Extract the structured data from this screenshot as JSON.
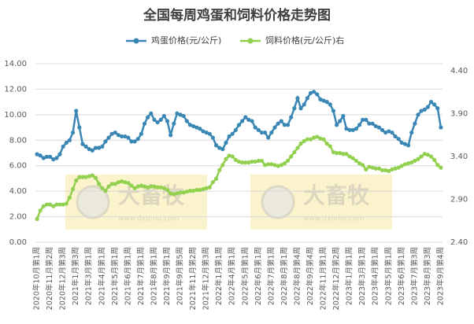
{
  "chart_data": {
    "type": "line",
    "title": "全国每周鸡蛋和饲料价格走势图",
    "categories": [
      "2020年10月第1周",
      null,
      null,
      null,
      "2020年11月第2周",
      null,
      null,
      null,
      "2020年12月第3周",
      null,
      null,
      null,
      "2021年1月第3周",
      null,
      null,
      null,
      "2021年3月第1周",
      null,
      null,
      null,
      "2021年4月第1周",
      null,
      null,
      null,
      "2021年5月第1周",
      null,
      null,
      null,
      "2021年6月第1周",
      null,
      null,
      null,
      "2021年7月第1周",
      null,
      null,
      null,
      "2021年8月第1周",
      null,
      null,
      null,
      "2021年9月第1周",
      null,
      null,
      null,
      "2021年9月第5周",
      null,
      null,
      null,
      "2021年11月第2周",
      null,
      null,
      null,
      "2021年12月第3周",
      null,
      null,
      null,
      "2022年1月第1周",
      null,
      null,
      null,
      "2022年4月第1周",
      null,
      null,
      null,
      "2022年5月第1周",
      null,
      null,
      null,
      "2022年6月第1周",
      null,
      null,
      null,
      "2022年7月第1周",
      null,
      null,
      null,
      "2022年8月第1周",
      null,
      null,
      null,
      "2022年8月第4周",
      null,
      null,
      null,
      "2022年9月第4周",
      null,
      null,
      null,
      "2022年11月第1周",
      null,
      null,
      null,
      "2022年12月第2周",
      null,
      null,
      null,
      "2023年1月第1周",
      null,
      null,
      null,
      "2023年3月第1周",
      null,
      null,
      null,
      "2023年4月第1周",
      null,
      null,
      null,
      "2023年5月第1周",
      null,
      null,
      null,
      "2023年6月第1周",
      null,
      null,
      null,
      "2023年7月第3周",
      null,
      null,
      null,
      "2023年8月第3周",
      null,
      null,
      null,
      "2023年9月第4周"
    ],
    "series": [
      {
        "name": "鸡蛋价格(元/公斤)",
        "color": "#3a87b5",
        "values": [
          6.9,
          6.8,
          6.6,
          6.7,
          6.7,
          6.5,
          6.6,
          6.9,
          7.5,
          7.8,
          8.0,
          8.6,
          10.3,
          9.0,
          7.7,
          7.5,
          7.3,
          7.2,
          7.4,
          7.4,
          7.5,
          7.9,
          8.2,
          8.5,
          8.6,
          8.4,
          8.3,
          8.3,
          8.2,
          7.9,
          7.9,
          8.1,
          8.5,
          9.3,
          9.8,
          10.1,
          9.6,
          9.4,
          9.6,
          9.9,
          9.5,
          8.4,
          9.3,
          10.1,
          10.0,
          9.9,
          9.5,
          9.2,
          9.1,
          9.0,
          8.9,
          8.7,
          8.6,
          8.5,
          8.2,
          7.6,
          7.4,
          7.3,
          7.8,
          8.3,
          8.5,
          8.8,
          9.2,
          9.5,
          9.8,
          9.6,
          9.5,
          9.0,
          8.8,
          8.6,
          8.6,
          8.2,
          8.6,
          9.0,
          9.3,
          9.5,
          9.2,
          9.2,
          9.8,
          10.5,
          11.3,
          10.5,
          10.8,
          11.3,
          11.7,
          11.8,
          11.6,
          11.2,
          11.1,
          11.0,
          10.8,
          10.3,
          9.2,
          9.5,
          9.9,
          8.9,
          8.8,
          8.8,
          8.9,
          9.2,
          9.6,
          9.6,
          9.3,
          9.3,
          9.1,
          9.0,
          8.8,
          8.6,
          8.7,
          8.6,
          8.3,
          8.1,
          7.8,
          7.7,
          7.6,
          8.6,
          9.3,
          10.0,
          10.3,
          10.4,
          10.6,
          11.0,
          10.8,
          10.5,
          9.0
        ]
      },
      {
        "name": "饲料价格(元/公斤)右",
        "color": "#92d050",
        "axis": "y2",
        "values": [
          2.67,
          2.77,
          2.82,
          2.84,
          2.84,
          2.82,
          2.84,
          2.84,
          2.84,
          2.85,
          2.92,
          3.02,
          3.12,
          3.16,
          3.16,
          3.16,
          3.17,
          3.18,
          3.15,
          3.08,
          3.03,
          3.0,
          3.05,
          3.08,
          3.08,
          3.1,
          3.11,
          3.1,
          3.09,
          3.06,
          3.03,
          3.05,
          3.06,
          3.05,
          3.04,
          3.05,
          3.05,
          3.04,
          3.04,
          3.03,
          3.01,
          2.97,
          2.96,
          2.97,
          2.98,
          2.98,
          2.99,
          3.0,
          3.0,
          3.01,
          3.01,
          3.02,
          3.03,
          3.04,
          3.1,
          3.14,
          3.24,
          3.3,
          3.37,
          3.41,
          3.4,
          3.36,
          3.34,
          3.33,
          3.33,
          3.33,
          3.34,
          3.34,
          3.35,
          3.35,
          3.3,
          3.31,
          3.31,
          3.3,
          3.29,
          3.3,
          3.32,
          3.35,
          3.4,
          3.45,
          3.5,
          3.55,
          3.58,
          3.6,
          3.6,
          3.62,
          3.63,
          3.61,
          3.6,
          3.55,
          3.52,
          3.45,
          3.44,
          3.44,
          3.43,
          3.43,
          3.4,
          3.38,
          3.35,
          3.32,
          3.3,
          3.25,
          3.28,
          3.27,
          3.26,
          3.26,
          3.24,
          3.24,
          3.23,
          3.25,
          3.26,
          3.27,
          3.29,
          3.31,
          3.32,
          3.33,
          3.35,
          3.37,
          3.4,
          3.43,
          3.42,
          3.4,
          3.36,
          3.3,
          3.27
        ]
      }
    ],
    "ylim": [
      0,
      14
    ],
    "yticks": [
      {
        "value": 0,
        "label": "0.00"
      },
      {
        "value": 2,
        "label": "2.00"
      },
      {
        "value": 4,
        "label": "4.00"
      },
      {
        "value": 6,
        "label": "6.00"
      },
      {
        "value": 8,
        "label": "8.00"
      },
      {
        "value": 10,
        "label": "10.00"
      },
      {
        "value": 12,
        "label": "12.00"
      },
      {
        "value": 14,
        "label": "14.00"
      }
    ],
    "y2lim": [
      2.4,
      4.4
    ],
    "y2ticks": [
      {
        "value": 2.4,
        "label": "2.40"
      },
      {
        "value": 2.9,
        "label": "2.90"
      },
      {
        "value": 3.4,
        "label": "3.40"
      },
      {
        "value": 3.9,
        "label": "3.90"
      },
      {
        "value": 4.4,
        "label": "4.40"
      }
    ],
    "grid": true,
    "legend": "top",
    "watermark": {
      "text": "大畜牧",
      "url": "www.dxumu.com"
    }
  }
}
